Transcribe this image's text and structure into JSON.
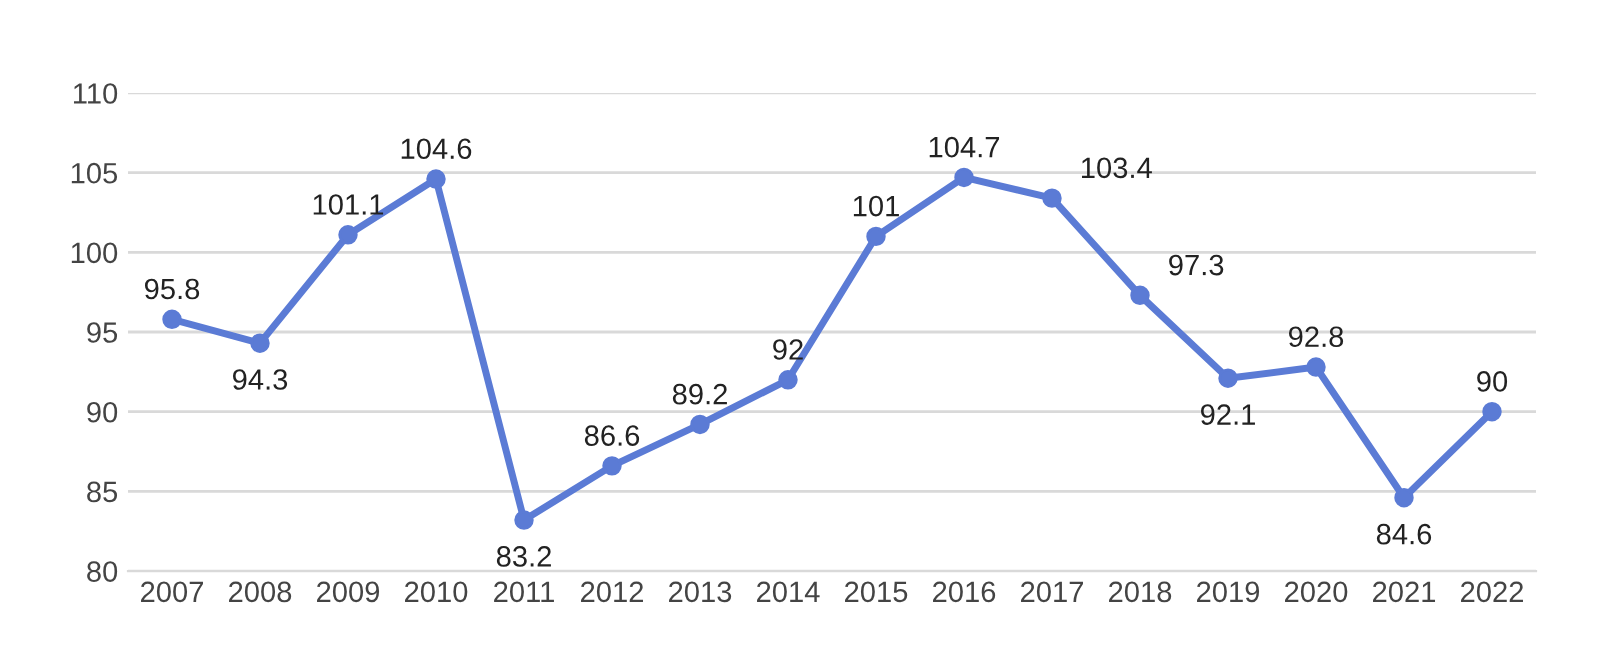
{
  "chart_data": {
    "type": "line",
    "categories": [
      "2007",
      "2008",
      "2009",
      "2010",
      "2011",
      "2012",
      "2013",
      "2014",
      "2015",
      "2016",
      "2017",
      "2018",
      "2019",
      "2020",
      "2021",
      "2022"
    ],
    "series": [
      {
        "color": "#5b7bd5",
        "values": [
          95.8,
          94.3,
          101.1,
          104.6,
          83.2,
          86.6,
          89.2,
          92,
          101,
          104.7,
          103.4,
          97.3,
          92.1,
          92.8,
          84.6,
          90
        ]
      }
    ],
    "ylim": [
      80,
      110
    ],
    "yticks": [
      80,
      85,
      90,
      95,
      100,
      105,
      110
    ],
    "grid": "y",
    "legend": false,
    "marker": "circle",
    "line_style": "solid",
    "data_labels": true
  }
}
